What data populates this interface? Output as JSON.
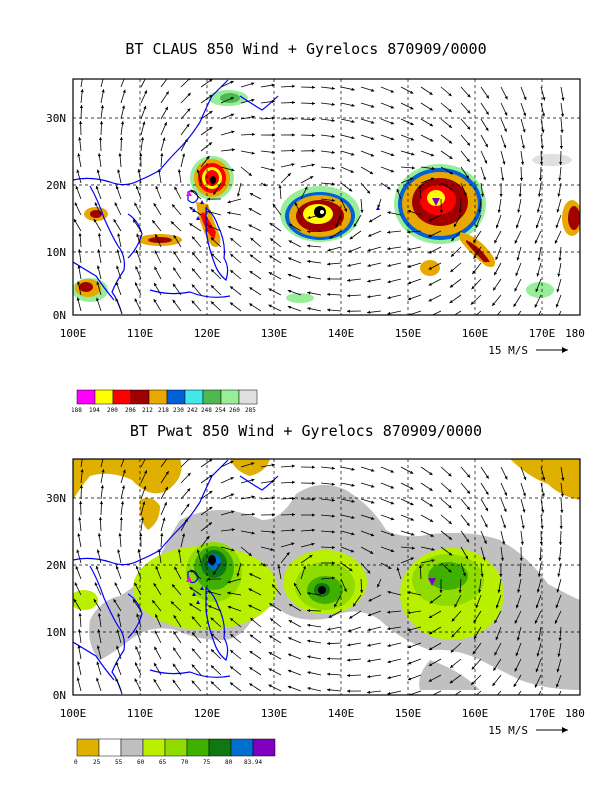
{
  "panels": [
    {
      "title": "BT CLAUS 850 Wind + Gyrelocs 870909/0000",
      "lat_labels": [
        "30N",
        "20N",
        "10N",
        "0N"
      ],
      "lon_labels": [
        "100E",
        "110E",
        "120E",
        "130E",
        "140E",
        "150E",
        "160E",
        "170E",
        "180"
      ],
      "vector_legend": "15 M/S",
      "colorbar": {
        "colors": [
          "#ff00ff",
          "#ffff00",
          "#ff0000",
          "#a00000",
          "#e8a800",
          "#0060d8",
          "#40e8e8",
          "#50b850",
          "#98ee98",
          "#e0e0e0"
        ],
        "labels": [
          "188",
          "194",
          "200",
          "206",
          "212",
          "218",
          "230",
          "242",
          "248",
          "254",
          "260",
          "285"
        ]
      }
    },
    {
      "title": "BT Pwat 850 Wind + Gyrelocs 870909/0000",
      "lat_labels": [
        "30N",
        "20N",
        "10N",
        "0N"
      ],
      "lon_labels": [
        "100E",
        "110E",
        "120E",
        "130E",
        "140E",
        "150E",
        "160E",
        "170E",
        "180"
      ],
      "vector_legend": "15 M/S",
      "colorbar": {
        "colors": [
          "#e0b000",
          "#ffffff",
          "#c0c0c0",
          "#b8f000",
          "#90dc00",
          "#40b000",
          "#107810",
          "#0070d0",
          "#8000c0"
        ],
        "labels": [
          "0",
          "25",
          "55",
          "60",
          "65",
          "70",
          "75",
          "80",
          "83.94"
        ]
      }
    }
  ]
}
